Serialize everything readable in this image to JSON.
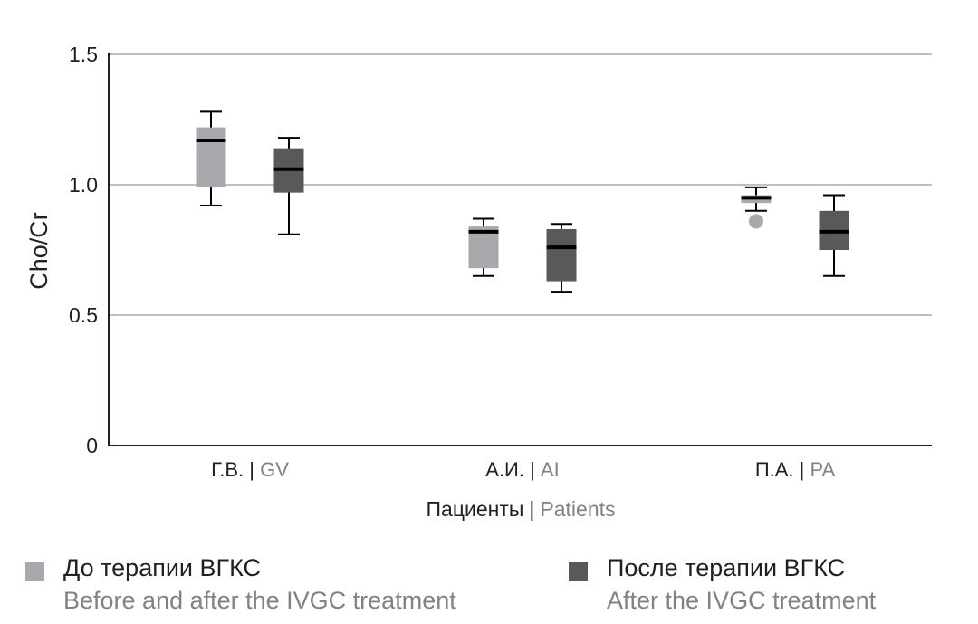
{
  "chart_data": {
    "type": "boxplot",
    "ylabel": "Cho/Cr",
    "xlabel": {
      "ru": "Пациенты",
      "sep": "|",
      "en": "Patients"
    },
    "ylim": [
      0,
      1.5
    ],
    "yticks": [
      "0",
      "0.5",
      "1.0",
      "1.5"
    ],
    "ytick_values": [
      0,
      0.5,
      1.0,
      1.5
    ],
    "grid": true,
    "categories": [
      {
        "ru": "Г.В.",
        "en": "GV"
      },
      {
        "ru": "А.И.",
        "en": "AI"
      },
      {
        "ru": "П.А.",
        "en": "PA"
      }
    ],
    "series": [
      {
        "name_ru": "До терапии ВГКС",
        "name_en": "Before and after the IVGC treatment",
        "color": "#a7a9ac",
        "boxes": [
          {
            "whisker_low": 0.92,
            "q1": 0.99,
            "median": 1.17,
            "q3": 1.22,
            "whisker_high": 1.28,
            "outliers": []
          },
          {
            "whisker_low": 0.65,
            "q1": 0.68,
            "median": 0.82,
            "q3": 0.84,
            "whisker_high": 0.87,
            "outliers": []
          },
          {
            "whisker_low": 0.9,
            "q1": 0.93,
            "median": 0.95,
            "q3": 0.96,
            "whisker_high": 0.99,
            "outliers": [
              0.86
            ]
          }
        ]
      },
      {
        "name_ru": "После терапии ВГКС",
        "name_en": "After the IVGC treatment",
        "color": "#58595b",
        "boxes": [
          {
            "whisker_low": 0.81,
            "q1": 0.97,
            "median": 1.06,
            "q3": 1.14,
            "whisker_high": 1.18,
            "outliers": []
          },
          {
            "whisker_low": 0.59,
            "q1": 0.63,
            "median": 0.76,
            "q3": 0.83,
            "whisker_high": 0.85,
            "outliers": []
          },
          {
            "whisker_low": 0.65,
            "q1": 0.75,
            "median": 0.82,
            "q3": 0.9,
            "whisker_high": 0.96,
            "outliers": []
          }
        ]
      }
    ],
    "legend_position": "bottom"
  }
}
